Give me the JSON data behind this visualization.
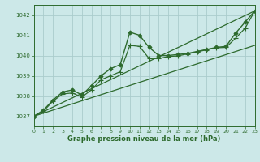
{
  "background_color": "#cce8e8",
  "grid_color": "#aacccc",
  "line_color": "#2d6a2d",
  "text_color": "#2d6a2d",
  "xlabel": "Graphe pression niveau de la mer (hPa)",
  "xlim": [
    0,
    23
  ],
  "ylim": [
    1036.5,
    1042.5
  ],
  "yticks": [
    1037,
    1038,
    1039,
    1040,
    1041,
    1042
  ],
  "xticks": [
    0,
    1,
    2,
    3,
    4,
    5,
    6,
    7,
    8,
    9,
    10,
    11,
    12,
    13,
    14,
    15,
    16,
    17,
    18,
    19,
    20,
    21,
    22,
    23
  ],
  "series": [
    {
      "x": [
        0,
        1,
        2,
        3,
        4,
        5,
        6,
        7,
        8,
        9,
        10,
        11,
        12,
        13,
        14,
        15,
        16,
        17,
        18,
        19,
        20,
        21,
        22,
        23
      ],
      "y": [
        1037.0,
        1037.3,
        1037.8,
        1038.2,
        1038.3,
        1038.05,
        1038.5,
        1039.0,
        1039.35,
        1039.55,
        1041.15,
        1041.0,
        1040.4,
        1040.0,
        1040.0,
        1040.05,
        1040.1,
        1040.2,
        1040.3,
        1040.4,
        1040.45,
        1041.1,
        1041.65,
        1042.2
      ],
      "marker": "D",
      "markersize": 2.5,
      "linewidth": 1.0,
      "zorder": 4
    },
    {
      "x": [
        0,
        1,
        2,
        3,
        4,
        5,
        6,
        7,
        8,
        9,
        10,
        11,
        12,
        13,
        14,
        15,
        16,
        17,
        18,
        19,
        20,
        21,
        22,
        23
      ],
      "y": [
        1037.0,
        1037.25,
        1037.75,
        1038.1,
        1038.15,
        1037.95,
        1038.3,
        1038.8,
        1039.0,
        1039.2,
        1040.5,
        1040.45,
        1039.85,
        1039.85,
        1039.95,
        1039.98,
        1040.08,
        1040.18,
        1040.28,
        1040.38,
        1040.4,
        1040.85,
        1041.35,
        1042.2
      ],
      "marker": "+",
      "markersize": 4.5,
      "linewidth": 0.9,
      "zorder": 3
    },
    {
      "x": [
        0,
        23
      ],
      "y": [
        1037.0,
        1042.2
      ],
      "marker": null,
      "markersize": 0,
      "linewidth": 0.9,
      "zorder": 2
    },
    {
      "x": [
        0,
        23
      ],
      "y": [
        1037.0,
        1040.5
      ],
      "marker": null,
      "markersize": 0,
      "linewidth": 0.9,
      "zorder": 2
    }
  ]
}
